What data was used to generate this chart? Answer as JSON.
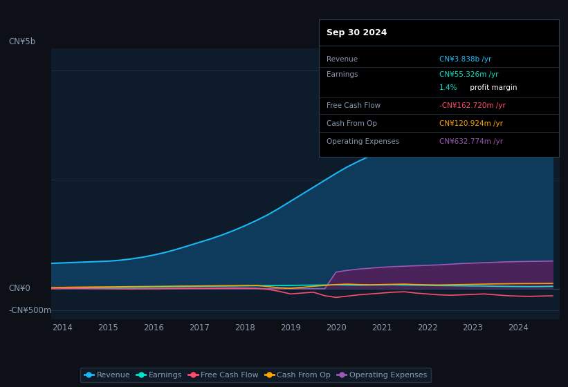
{
  "background_color": "#0d1117",
  "plot_bg_color": "#0d1b2a",
  "ylim": [
    -700000000,
    5500000000
  ],
  "years": [
    2013.75,
    2014.0,
    2014.25,
    2014.5,
    2014.75,
    2015.0,
    2015.25,
    2015.5,
    2015.75,
    2016.0,
    2016.25,
    2016.5,
    2016.75,
    2017.0,
    2017.25,
    2017.5,
    2017.75,
    2018.0,
    2018.25,
    2018.5,
    2018.75,
    2019.0,
    2019.25,
    2019.5,
    2019.75,
    2020.0,
    2020.25,
    2020.5,
    2020.75,
    2021.0,
    2021.25,
    2021.5,
    2021.75,
    2022.0,
    2022.25,
    2022.5,
    2022.75,
    2023.0,
    2023.25,
    2023.5,
    2023.75,
    2024.0,
    2024.25,
    2024.5,
    2024.75
  ],
  "revenue": [
    580000000,
    590000000,
    600000000,
    610000000,
    620000000,
    630000000,
    650000000,
    680000000,
    720000000,
    770000000,
    830000000,
    900000000,
    980000000,
    1060000000,
    1140000000,
    1230000000,
    1330000000,
    1440000000,
    1560000000,
    1690000000,
    1840000000,
    2000000000,
    2160000000,
    2320000000,
    2480000000,
    2640000000,
    2790000000,
    2920000000,
    3040000000,
    3160000000,
    3300000000,
    3420000000,
    3520000000,
    3610000000,
    3750000000,
    3950000000,
    4150000000,
    4380000000,
    4620000000,
    4780000000,
    4820000000,
    4680000000,
    4450000000,
    4200000000,
    3838000000
  ],
  "earnings": [
    15000000,
    18000000,
    20000000,
    22000000,
    25000000,
    28000000,
    30000000,
    32000000,
    35000000,
    38000000,
    42000000,
    46000000,
    50000000,
    54000000,
    58000000,
    60000000,
    62000000,
    65000000,
    68000000,
    70000000,
    72000000,
    75000000,
    80000000,
    82000000,
    85000000,
    88000000,
    84000000,
    80000000,
    82000000,
    85000000,
    88000000,
    84000000,
    80000000,
    75000000,
    70000000,
    68000000,
    65000000,
    62000000,
    60000000,
    55000000,
    52000000,
    50000000,
    48000000,
    50000000,
    55326000
  ],
  "free_cash_flow": [
    5000000,
    8000000,
    10000000,
    8000000,
    5000000,
    0,
    -5000000,
    -8000000,
    -5000000,
    -2000000,
    2000000,
    5000000,
    8000000,
    10000000,
    12000000,
    15000000,
    18000000,
    15000000,
    10000000,
    -15000000,
    -60000000,
    -120000000,
    -100000000,
    -80000000,
    -160000000,
    -200000000,
    -170000000,
    -140000000,
    -120000000,
    -100000000,
    -80000000,
    -70000000,
    -100000000,
    -120000000,
    -140000000,
    -150000000,
    -140000000,
    -130000000,
    -120000000,
    -140000000,
    -160000000,
    -170000000,
    -175000000,
    -168000000,
    -162720000
  ],
  "cash_from_op": [
    25000000,
    30000000,
    35000000,
    38000000,
    40000000,
    42000000,
    45000000,
    48000000,
    50000000,
    52000000,
    55000000,
    58000000,
    60000000,
    62000000,
    65000000,
    68000000,
    70000000,
    72000000,
    75000000,
    50000000,
    20000000,
    10000000,
    30000000,
    55000000,
    75000000,
    95000000,
    105000000,
    95000000,
    90000000,
    95000000,
    100000000,
    105000000,
    95000000,
    90000000,
    85000000,
    90000000,
    95000000,
    100000000,
    105000000,
    110000000,
    113000000,
    116000000,
    118000000,
    119000000,
    120924000
  ],
  "operating_expenses": [
    0,
    0,
    0,
    0,
    0,
    0,
    0,
    0,
    0,
    0,
    0,
    0,
    0,
    0,
    0,
    0,
    0,
    0,
    0,
    0,
    0,
    0,
    0,
    0,
    0,
    380000000,
    420000000,
    450000000,
    470000000,
    490000000,
    505000000,
    515000000,
    525000000,
    535000000,
    545000000,
    560000000,
    575000000,
    585000000,
    595000000,
    605000000,
    615000000,
    620000000,
    625000000,
    628000000,
    632774000
  ],
  "revenue_color": "#1ab8f5",
  "revenue_fill_color": "#0e3a5c",
  "earnings_color": "#00e5cc",
  "free_cash_flow_color": "#ff4d6d",
  "cash_from_op_color": "#ffa500",
  "operating_expenses_color": "#9b59b6",
  "operating_expenses_fill_color": "#4a235a",
  "grid_color": "#1e3048",
  "text_color": "#8a9bb0",
  "legend_bg": "#111d2b",
  "info_box": {
    "title": "Sep 30 2024",
    "rows": [
      {
        "label": "Revenue",
        "value": "CN¥3.838b /yr",
        "value_color": "#1ab8f5"
      },
      {
        "label": "Earnings",
        "value": "CN¥55.326m /yr",
        "value_color": "#00e5cc"
      },
      {
        "label": "",
        "pct": "1.4%",
        "rest": " profit margin",
        "pct_color": "#00e5cc",
        "rest_color": "#ffffff"
      },
      {
        "label": "Free Cash Flow",
        "value": "-CN¥162.720m /yr",
        "value_color": "#ff4d6d"
      },
      {
        "label": "Cash From Op",
        "value": "CN¥120.924m /yr",
        "value_color": "#ffa500"
      },
      {
        "label": "Operating Expenses",
        "value": "CN¥632.774m /yr",
        "value_color": "#9b59b6"
      }
    ]
  },
  "xtick_years": [
    2014,
    2015,
    2016,
    2017,
    2018,
    2019,
    2020,
    2021,
    2022,
    2023,
    2024
  ]
}
